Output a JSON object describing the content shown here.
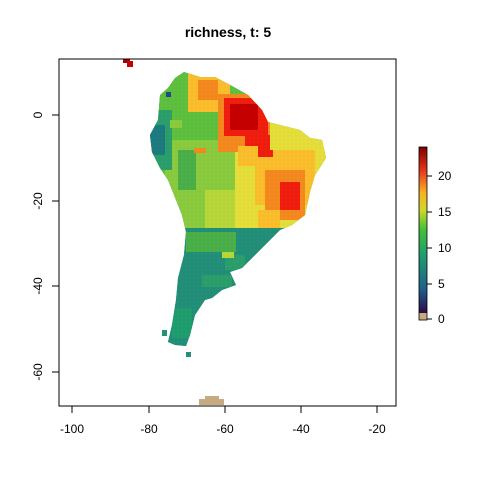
{
  "title": "richness, t: 5",
  "map": {
    "x_ticks": [
      "-100",
      "-80",
      "-60",
      "-40",
      "-20"
    ],
    "y_ticks": [
      "0",
      "-20",
      "-40",
      "-60"
    ],
    "x_range": [
      -103,
      -20
    ],
    "y_range": [
      -68,
      13
    ],
    "value_range": [
      0,
      24
    ]
  },
  "legend": {
    "ticks": [
      "0",
      "5",
      "10",
      "15",
      "20"
    ],
    "colors": [
      "#2c0a45",
      "#1f5e8a",
      "#1f9e70",
      "#3fbf3a",
      "#cfd82a",
      "#f5b525",
      "#e8351b",
      "#7a0000"
    ],
    "zero_color": "#c8aa80"
  },
  "colors": {
    "deep_red": "#c60000",
    "red": "#f21e0e",
    "orange": "#f58a1e",
    "amber": "#fbbf2c",
    "yellow": "#e7df3a",
    "lime": "#b9d83a",
    "light_green": "#8bcc3f",
    "green": "#5fc03f",
    "mid_green": "#4bb049",
    "teal_green": "#2b9f6c",
    "teal": "#23907a",
    "dark_teal": "#1d7c80",
    "blue": "#1f4a8a",
    "tan": "#c8aa80",
    "dark_red": "#9c0000"
  }
}
